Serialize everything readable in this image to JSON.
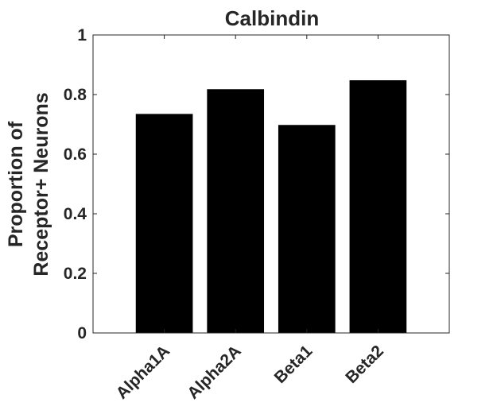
{
  "chart_data": {
    "type": "bar",
    "title": "Calbindin",
    "xlabel": "",
    "ylabel_lines": [
      "Proportion of",
      "Receptor+ Neurons"
    ],
    "categories": [
      "Alpha1A",
      "Alpha2A",
      "Beta1",
      "Beta2"
    ],
    "values": [
      0.735,
      0.818,
      0.698,
      0.848
    ],
    "ylim": [
      0,
      1
    ],
    "xlim": [
      0,
      5
    ],
    "yticks": [
      0,
      0.2,
      0.4,
      0.6,
      0.8,
      1
    ],
    "ytick_labels": [
      "0",
      "0.2",
      "0.4",
      "0.6",
      "0.8",
      "1"
    ],
    "grid": false,
    "bar_color": "#000000",
    "axis_color": "#262626"
  }
}
